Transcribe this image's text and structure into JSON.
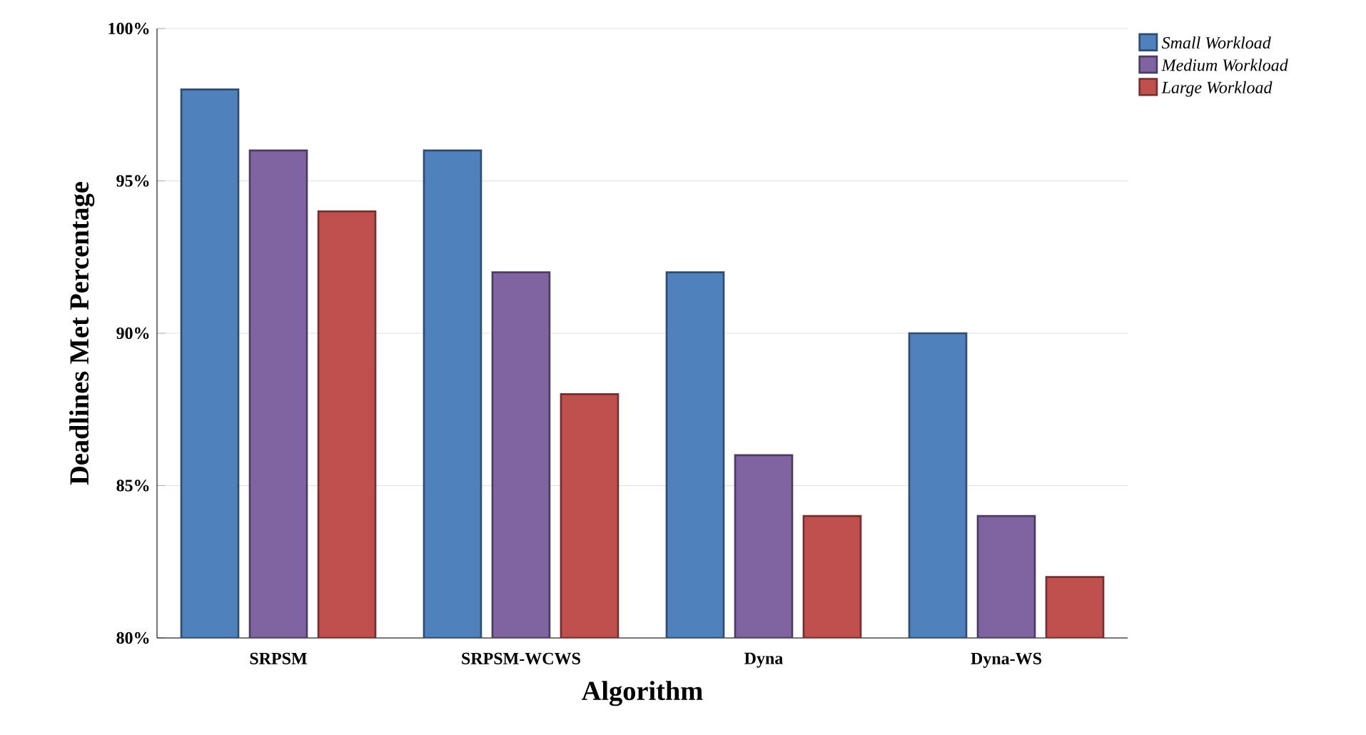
{
  "chart_data": {
    "type": "bar",
    "xlabel": "Algorithm",
    "ylabel": "Deadlines Met Percentage",
    "categories": [
      "SRPSM",
      "SRPSM-WCWS",
      "Dyna",
      "Dyna-WS"
    ],
    "series": [
      {
        "name": "Small Workload",
        "color": "#4f81bd",
        "values": [
          98,
          96,
          92,
          90
        ]
      },
      {
        "name": "Medium Workload",
        "color": "#8064a2",
        "values": [
          96,
          92,
          86,
          84
        ]
      },
      {
        "name": "Large Workload",
        "color": "#c0504d",
        "values": [
          94,
          88,
          84,
          82
        ]
      }
    ],
    "ylim": [
      80,
      100
    ],
    "yticks": [
      {
        "value": 80,
        "label": "80%"
      },
      {
        "value": 85,
        "label": "85%"
      },
      {
        "value": 90,
        "label": "90%"
      },
      {
        "value": 95,
        "label": "95%"
      },
      {
        "value": 100,
        "label": "100%"
      }
    ],
    "grid": "y",
    "legend": "top right"
  }
}
